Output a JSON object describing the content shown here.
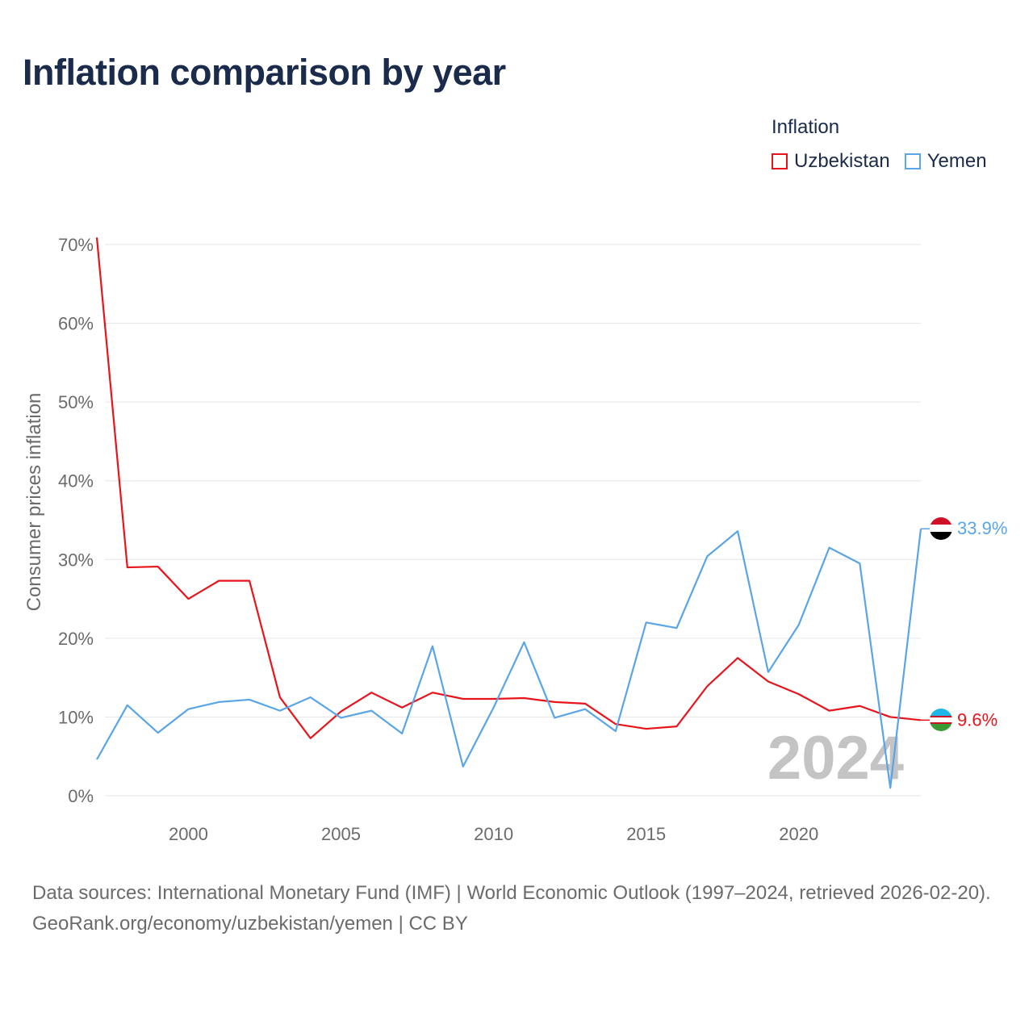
{
  "title": "Inflation comparison by year",
  "legend": {
    "title": "Inflation",
    "items": [
      {
        "label": "Uzbekistan",
        "color": "#e8141b"
      },
      {
        "label": "Yemen",
        "color": "#5aa5e6"
      }
    ]
  },
  "footer": {
    "source_line": "Data sources: International Monetary Fund (IMF) | World Economic Outlook (1997–2024, retrieved 2026-02-20).",
    "credit_line": "GeoRank.org/economy/uzbekistan/yemen | CC BY"
  },
  "chart_data": {
    "type": "line",
    "title": "Inflation comparison by year",
    "xlabel": "",
    "ylabel": "Consumer prices inflation",
    "xlim": [
      1997,
      2024
    ],
    "ylim": [
      0,
      70
    ],
    "y_ticks": [
      0,
      10,
      20,
      30,
      40,
      50,
      60,
      70
    ],
    "y_tick_labels": [
      "0%",
      "10%",
      "20%",
      "30%",
      "40%",
      "50%",
      "60%",
      "70%"
    ],
    "x_ticks": [
      2000,
      2005,
      2010,
      2015,
      2020
    ],
    "x_tick_labels": [
      "2000",
      "2005",
      "2010",
      "2015",
      "2020"
    ],
    "watermark_year": "2024",
    "x": [
      1997,
      1998,
      1999,
      2000,
      2001,
      2002,
      2003,
      2004,
      2005,
      2006,
      2007,
      2008,
      2009,
      2010,
      2011,
      2012,
      2013,
      2014,
      2015,
      2016,
      2017,
      2018,
      2019,
      2020,
      2021,
      2022,
      2023,
      2024
    ],
    "series": [
      {
        "name": "Uzbekistan",
        "color": "#e8141b",
        "end_label": "9.6%",
        "flag": "uzbekistan-flag",
        "values": [
          70.9,
          29.0,
          29.1,
          25.0,
          27.3,
          27.3,
          12.5,
          7.3,
          10.7,
          13.1,
          11.2,
          13.1,
          12.3,
          12.3,
          12.4,
          11.9,
          11.7,
          9.1,
          8.5,
          8.8,
          13.9,
          17.5,
          14.5,
          12.9,
          10.8,
          11.4,
          10.0,
          9.6
        ]
      },
      {
        "name": "Yemen",
        "color": "#5aa5e6",
        "end_label": "33.9%",
        "flag": "yemen-flag",
        "values": [
          4.6,
          11.5,
          8.0,
          11.0,
          11.9,
          12.2,
          10.8,
          12.5,
          9.9,
          10.8,
          7.9,
          19.0,
          3.7,
          11.2,
          19.5,
          9.9,
          11.0,
          8.2,
          22.0,
          21.3,
          30.4,
          33.6,
          15.7,
          21.7,
          31.5,
          29.5,
          1.0,
          33.9
        ]
      }
    ]
  }
}
